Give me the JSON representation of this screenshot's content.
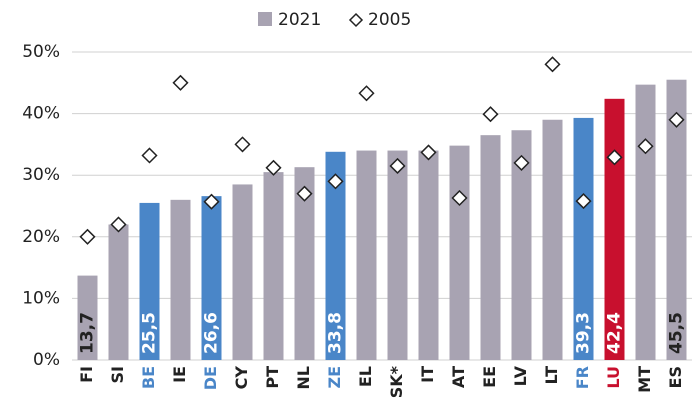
{
  "chart_data": {
    "type": "bar",
    "categories": [
      "FI",
      "SI",
      "BE",
      "IE",
      "DE",
      "CY",
      "PT",
      "NL",
      "ZE",
      "EL",
      "SK*",
      "IT",
      "AT",
      "EE",
      "LV",
      "LT",
      "FR",
      "LU",
      "MT",
      "ES"
    ],
    "series": [
      {
        "name": "2021",
        "color": "#a8a3b2",
        "colors": [
          "#a8a3b2",
          "#a8a3b2",
          "#4a86c8",
          "#a8a3b2",
          "#4a86c8",
          "#a8a3b2",
          "#a8a3b2",
          "#a8a3b2",
          "#4a86c8",
          "#a8a3b2",
          "#a8a3b2",
          "#a8a3b2",
          "#a8a3b2",
          "#a8a3b2",
          "#a8a3b2",
          "#a8a3b2",
          "#4a86c8",
          "#c8102e",
          "#a8a3b2",
          "#a8a3b2"
        ],
        "values": [
          13.7,
          22,
          25.5,
          26,
          26.6,
          28.5,
          30.5,
          31.3,
          33.8,
          34,
          34,
          34,
          34.8,
          36.5,
          37.3,
          39,
          39.3,
          42.4,
          44.7,
          45.5
        ],
        "value_labels": [
          "13,7",
          null,
          "25,5",
          null,
          "26,6",
          null,
          null,
          null,
          "33,8",
          null,
          null,
          null,
          null,
          null,
          null,
          null,
          "39,3",
          "42,4",
          null,
          "45,5"
        ]
      },
      {
        "name": "2005",
        "color": "#222222",
        "values": [
          20,
          22,
          33.2,
          45,
          25.7,
          35,
          31.2,
          27,
          29,
          43.3,
          31.5,
          33.7,
          26.3,
          39.9,
          32,
          48,
          25.8,
          32.9,
          34.7,
          39
        ]
      }
    ],
    "ylim": [
      0,
      50
    ],
    "yticks": [
      {
        "value": 0,
        "label": "0%"
      },
      {
        "value": 10,
        "label": "10%"
      },
      {
        "value": 20,
        "label": "20%"
      },
      {
        "value": 30,
        "label": "30%"
      },
      {
        "value": 40,
        "label": "40%"
      },
      {
        "value": 50,
        "label": "50%"
      }
    ],
    "grid": true,
    "legend": "top"
  }
}
